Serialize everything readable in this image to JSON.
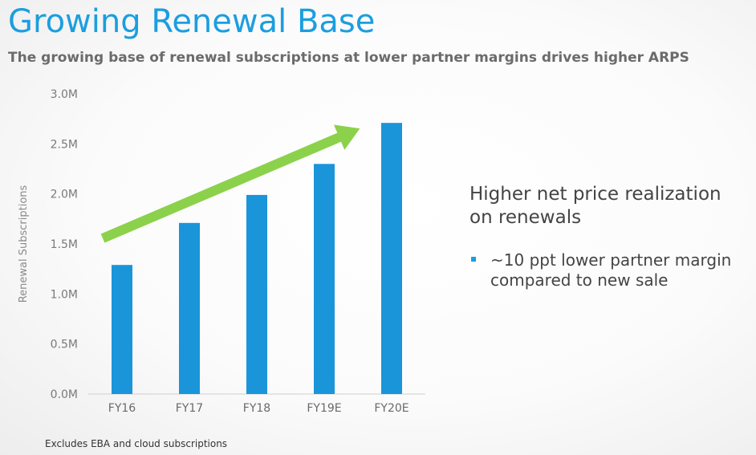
{
  "slide": {
    "title": "Growing Renewal Base",
    "subtitle": "The growing base of renewal subscriptions at lower partner margins drives higher ARPS",
    "footnote": "Excludes EBA and cloud subscriptions"
  },
  "callout": {
    "heading_lines": [
      "Higher net price realization",
      "on renewals"
    ],
    "bullet_lines": [
      "~10 ppt lower partner margin",
      "compared to new sale"
    ]
  },
  "colors": {
    "accent": "#1b9ee0",
    "bar": "#1a95d9",
    "arrow": "#8cd14b",
    "text": "#444444",
    "muted": "#6b6b6b"
  },
  "chart_data": {
    "type": "bar",
    "categories": [
      "FY16",
      "FY17",
      "FY18",
      "FY19E",
      "FY20E"
    ],
    "values": [
      1.29,
      1.71,
      1.99,
      2.3,
      2.71
    ],
    "ylabel": "Renewal Subscriptions",
    "ylim": [
      0,
      3.0
    ],
    "yticks": [
      0,
      0.5,
      1.0,
      1.5,
      2.0,
      2.5,
      3.0
    ],
    "ytick_labels": [
      "0.0M",
      "0.5M",
      "1.0M",
      "1.5M",
      "2.0M",
      "2.5M",
      "3.0M"
    ],
    "grid": false,
    "annotation": "upward trend arrow"
  }
}
